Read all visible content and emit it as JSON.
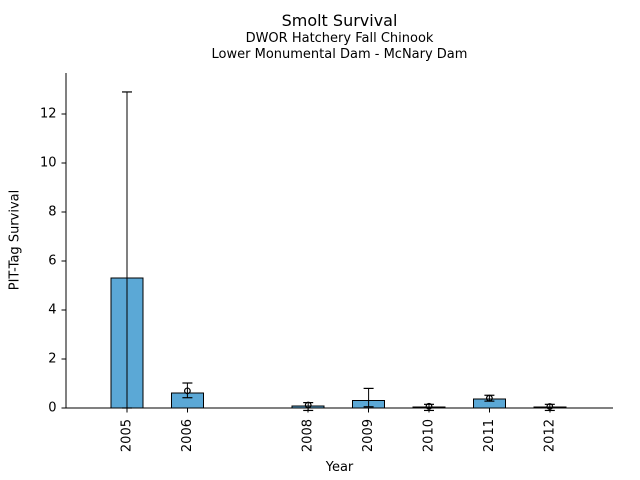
{
  "chart_data": {
    "type": "bar",
    "title": "Smolt Survival",
    "subtitles": [
      "DWOR Hatchery Fall Chinook",
      "Lower Monumental Dam - McNary Dam"
    ],
    "xlabel": "Year",
    "ylabel": "PIT-Tag Survival",
    "categories": [
      "2005",
      "2006",
      "2008",
      "2009",
      "2010",
      "2011",
      "2012"
    ],
    "x": [
      2005,
      2006,
      2008,
      2009,
      2010,
      2011,
      2012
    ],
    "series": [
      {
        "name": "survival_bar",
        "values": [
          5.3,
          0.62,
          0.08,
          0.3,
          0.04,
          0.37,
          0.04
        ]
      },
      {
        "name": "point_estimate_circle",
        "values": [
          null,
          0.7,
          0.12,
          null,
          0.07,
          0.4,
          0.06
        ]
      },
      {
        "name": "ci_lower",
        "values": [
          0,
          0.42,
          -0.1,
          0.05,
          -0.1,
          0.28,
          -0.1
        ]
      },
      {
        "name": "ci_upper",
        "values": [
          12.9,
          1.02,
          0.22,
          0.8,
          0.15,
          0.52,
          0.15
        ]
      }
    ],
    "yticks": [
      0,
      2,
      4,
      6,
      8,
      10,
      12
    ],
    "ylim": [
      0,
      13.7
    ],
    "xlim": [
      2004,
      2013.05
    ],
    "grid": false,
    "legend": null,
    "marker": "open-circle",
    "colors": {
      "bar_fill": "#5BA8D6",
      "bar_edge": "#000000",
      "error_bar": "#000000",
      "axis": "#000000",
      "text": "#000000",
      "background": "#ffffff"
    }
  }
}
